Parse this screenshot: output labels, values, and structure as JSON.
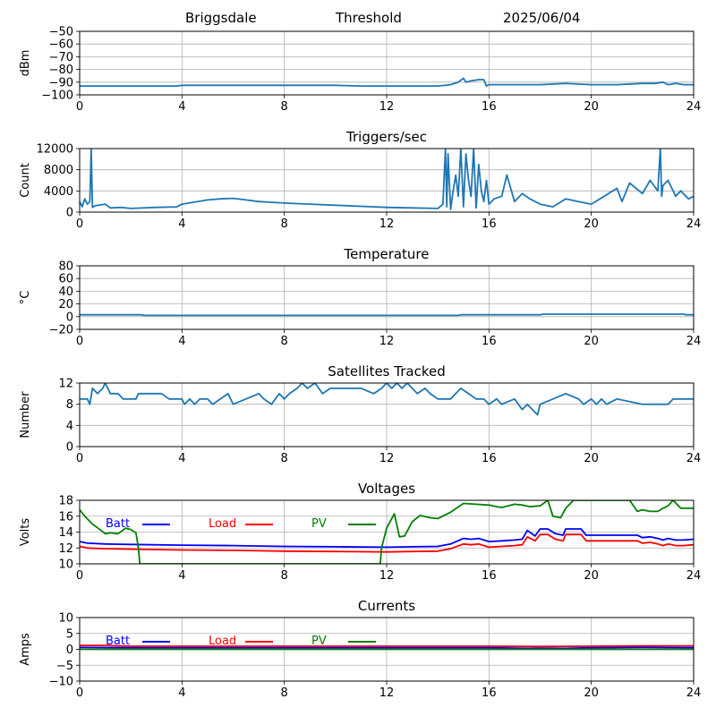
{
  "header": {
    "station": "Briggsdale",
    "mode": "Threshold",
    "date": "2025/06/04"
  },
  "colors": {
    "line": "#1f77b4",
    "grid": "#b0b0b0",
    "batt": "#0000ff",
    "load": "#ff0000",
    "pv": "#008000"
  },
  "x_ticks": [
    "0",
    "4",
    "8",
    "12",
    "16",
    "20",
    "24"
  ],
  "chart_data": [
    {
      "type": "line",
      "title": "",
      "ylabel": "dBm",
      "xlim": [
        0,
        24
      ],
      "ylim": [
        -100,
        -50
      ],
      "yticks": [
        -100,
        -90,
        -80,
        -70,
        -60,
        -50
      ],
      "ytick_labels": [
        "−100",
        "−90",
        "−80",
        "−70",
        "−60",
        "−50"
      ],
      "grid": true,
      "series": [
        {
          "x": [
            0,
            0.3,
            1,
            2,
            3,
            3.8,
            4,
            6,
            8,
            10,
            11,
            12,
            13,
            14,
            14.5,
            14.8,
            15,
            15.1,
            15.3,
            15.6,
            15.8,
            15.9,
            16,
            17,
            18,
            19,
            20,
            21,
            22,
            22.5,
            22.8,
            23,
            23.3,
            23.6,
            24
          ],
          "y": [
            -93,
            -93,
            -93,
            -93,
            -93,
            -93,
            -92.5,
            -92.5,
            -92.5,
            -92.5,
            -93,
            -93,
            -93,
            -93,
            -92,
            -90,
            -87,
            -90,
            -89,
            -88,
            -88,
            -93,
            -92,
            -92,
            -92,
            -91,
            -92,
            -92,
            -91,
            -91,
            -90,
            -92,
            -91,
            -92,
            -92
          ]
        }
      ]
    },
    {
      "type": "line",
      "title": "Triggers/sec",
      "ylabel": "Count",
      "xlim": [
        0,
        24
      ],
      "ylim": [
        0,
        12000
      ],
      "yticks": [
        0,
        4000,
        8000,
        12000
      ],
      "ytick_labels": [
        "0",
        "4000",
        "8000",
        "12000"
      ],
      "grid": true,
      "series": [
        {
          "x": [
            0,
            0.1,
            0.2,
            0.3,
            0.4,
            0.45,
            0.5,
            0.6,
            1,
            1.2,
            1.6,
            2,
            3,
            3.8,
            4,
            5,
            5.5,
            6,
            6.5,
            7,
            8,
            9,
            10,
            11,
            12,
            13,
            14,
            14.2,
            14.3,
            14.35,
            14.4,
            14.5,
            14.6,
            14.7,
            14.8,
            14.9,
            15,
            15.1,
            15.2,
            15.3,
            15.4,
            15.5,
            15.6,
            15.7,
            15.8,
            15.9,
            16,
            16.2,
            16.5,
            16.7,
            17,
            17.3,
            17.6,
            18,
            18.5,
            19,
            19.5,
            20,
            20.5,
            21,
            21.2,
            21.5,
            22,
            22.3,
            22.6,
            22.7,
            22.75,
            22.8,
            23,
            23.3,
            23.5,
            23.8,
            24
          ],
          "y": [
            2000,
            1000,
            2500,
            1500,
            2000,
            12000,
            900,
            1200,
            1500,
            800,
            900,
            700,
            900,
            1000,
            1500,
            2300,
            2500,
            2600,
            2300,
            2000,
            1700,
            1500,
            1300,
            1100,
            900,
            800,
            700,
            1500,
            12000,
            1000,
            11000,
            500,
            4000,
            7000,
            3000,
            12000,
            1000,
            11000,
            6000,
            3000,
            12000,
            800,
            9000,
            4000,
            2000,
            6000,
            1500,
            2500,
            3000,
            7000,
            2000,
            3500,
            2500,
            1500,
            1000,
            2500,
            2000,
            1500,
            3000,
            4500,
            2000,
            5500,
            3500,
            6000,
            4000,
            12000,
            3000,
            5000,
            6000,
            3000,
            4000,
            2500,
            3000
          ]
        }
      ]
    },
    {
      "type": "line",
      "title": "Temperature",
      "ylabel": "°C",
      "xlim": [
        0,
        24
      ],
      "ylim": [
        -20,
        80
      ],
      "yticks": [
        -20,
        0,
        20,
        40,
        60,
        80
      ],
      "ytick_labels": [
        "−20",
        "0",
        "20",
        "40",
        "60",
        "80"
      ],
      "grid": true,
      "series": [
        {
          "x": [
            0,
            2.4,
            2.5,
            14.8,
            14.9,
            18,
            18.1,
            23.6,
            23.7,
            24
          ],
          "y": [
            3,
            3,
            2,
            2,
            3,
            3,
            4,
            4,
            3,
            3
          ]
        }
      ]
    },
    {
      "type": "line",
      "title": "Satellites Tracked",
      "ylabel": "Number",
      "xlim": [
        0,
        24
      ],
      "ylim": [
        0,
        12
      ],
      "yticks": [
        0,
        4,
        8,
        12
      ],
      "ytick_labels": [
        "0",
        "4",
        "8",
        "12"
      ],
      "grid": true,
      "series": [
        {
          "x": [
            0,
            0.3,
            0.4,
            0.5,
            0.7,
            0.9,
            1,
            1.2,
            1.5,
            1.7,
            2.2,
            2.3,
            3.2,
            3.5,
            4,
            4.1,
            4.3,
            4.5,
            4.7,
            5,
            5.2,
            5.5,
            5.8,
            6,
            6.5,
            7,
            7.2,
            7.5,
            7.8,
            8,
            8.2,
            8.5,
            8.7,
            8.9,
            9.2,
            9.5,
            9.8,
            10,
            11,
            11.5,
            11.8,
            12,
            12.2,
            12.4,
            12.6,
            12.8,
            13,
            13.2,
            13.5,
            13.7,
            14,
            14.5,
            14.7,
            14.9,
            15.2,
            15.5,
            15.8,
            16,
            16.3,
            16.5,
            17,
            17.3,
            17.5,
            17.7,
            17.9,
            18,
            18.5,
            19,
            19.5,
            19.7,
            20,
            20.2,
            20.4,
            20.6,
            21,
            22,
            23,
            23.2,
            23.5,
            24
          ],
          "y": [
            9,
            9,
            8,
            11,
            10,
            11,
            12,
            10,
            10,
            9,
            9,
            10,
            10,
            9,
            9,
            8,
            9,
            8,
            9,
            9,
            8,
            9,
            10,
            8,
            9,
            10,
            9,
            8,
            10,
            9,
            10,
            11,
            12,
            11,
            12,
            10,
            11,
            11,
            11,
            10,
            11,
            12,
            11,
            12,
            11,
            12,
            11,
            10,
            11,
            10,
            9,
            9,
            10,
            11,
            10,
            9,
            9,
            8,
            9,
            8,
            9,
            7,
            8,
            7,
            6,
            8,
            9,
            10,
            9,
            8,
            9,
            8,
            9,
            8,
            9,
            8,
            8,
            9,
            9,
            9
          ]
        }
      ]
    },
    {
      "type": "line",
      "title": "Voltages",
      "ylabel": "Volts",
      "xlim": [
        0,
        24
      ],
      "ylim": [
        10,
        18
      ],
      "yticks": [
        10,
        12,
        14,
        16,
        18
      ],
      "ytick_labels": [
        "10",
        "12",
        "14",
        "16",
        "18"
      ],
      "grid": true,
      "legend_position": "upper-left",
      "series": [
        {
          "name": "Batt",
          "x": [
            0,
            0.3,
            1,
            2,
            4,
            6,
            8,
            10,
            12,
            13,
            14,
            14.5,
            15,
            15.3,
            15.6,
            16,
            16.5,
            17,
            17.3,
            17.5,
            17.8,
            18,
            18.3,
            18.6,
            18.9,
            19,
            19.6,
            19.8,
            20,
            21,
            21.8,
            22,
            22.3,
            22.6,
            22.8,
            23,
            23.3,
            23.6,
            24
          ],
          "y": [
            12.8,
            12.6,
            12.5,
            12.45,
            12.35,
            12.3,
            12.2,
            12.15,
            12.1,
            12.15,
            12.2,
            12.5,
            13.2,
            13.1,
            13.2,
            12.8,
            12.9,
            13,
            13.1,
            14.2,
            13.5,
            14.4,
            14.4,
            13.8,
            13.6,
            14.4,
            14.4,
            13.6,
            13.6,
            13.6,
            13.6,
            13.3,
            13.4,
            13.2,
            13,
            13.2,
            13,
            13,
            13.1
          ]
        },
        {
          "name": "Load",
          "x": [
            0,
            0.3,
            1,
            2,
            4,
            6,
            8,
            10,
            12,
            13,
            14,
            14.5,
            15,
            15.3,
            15.6,
            16,
            16.5,
            17,
            17.3,
            17.5,
            17.8,
            18,
            18.3,
            18.6,
            18.9,
            19,
            19.6,
            19.8,
            20,
            21,
            21.8,
            22,
            22.3,
            22.6,
            22.8,
            23,
            23.3,
            23.6,
            24
          ],
          "y": [
            12.2,
            12,
            11.9,
            11.85,
            11.75,
            11.7,
            11.6,
            11.55,
            11.5,
            11.55,
            11.6,
            11.9,
            12.5,
            12.4,
            12.5,
            12.1,
            12.2,
            12.3,
            12.4,
            13.4,
            12.9,
            13.7,
            13.7,
            13.1,
            12.9,
            13.7,
            13.7,
            12.9,
            12.9,
            12.9,
            12.9,
            12.6,
            12.7,
            12.5,
            12.3,
            12.5,
            12.3,
            12.3,
            12.4
          ]
        },
        {
          "name": "PV",
          "x": [
            0,
            0.2,
            0.5,
            0.8,
            1,
            1.2,
            1.5,
            1.8,
            2,
            2.2,
            2.3,
            2.35,
            11.75,
            11.8,
            12,
            12.3,
            12.5,
            12.7,
            13,
            13.3,
            13.7,
            14,
            14.5,
            15,
            15.5,
            16,
            16.3,
            16.5,
            17,
            17.3,
            17.6,
            18,
            18.3,
            18.5,
            18.8,
            19,
            19.3,
            21.5,
            21.8,
            22,
            22.3,
            22.6,
            22.8,
            23,
            23.2,
            23.5,
            24
          ],
          "y": [
            16.8,
            16,
            15,
            14.3,
            13.8,
            13.9,
            13.8,
            14.5,
            14.3,
            13.9,
            12,
            10,
            10,
            12,
            14.5,
            16.3,
            13.4,
            13.5,
            15.3,
            16.1,
            15.8,
            15.7,
            16.5,
            17.6,
            17.5,
            17.4,
            17.2,
            17.1,
            17.5,
            17.4,
            17.2,
            17.3,
            18,
            16,
            15.8,
            17,
            18,
            18,
            16.6,
            16.8,
            16.6,
            16.6,
            17,
            17.3,
            18,
            17,
            17
          ]
        }
      ]
    },
    {
      "type": "line",
      "title": "Currents",
      "ylabel": "Amps",
      "xlim": [
        0,
        24
      ],
      "ylim": [
        -10,
        10
      ],
      "yticks": [
        -10,
        -5,
        0,
        5,
        10
      ],
      "ytick_labels": [
        "−10",
        "−5",
        "0",
        "5",
        "10"
      ],
      "grid": true,
      "legend_position": "upper-left",
      "series": [
        {
          "name": "Batt",
          "x": [
            0,
            2,
            4,
            8,
            12,
            16,
            17.5,
            18,
            19,
            20,
            22,
            24
          ],
          "y": [
            0.6,
            0.5,
            0.5,
            0.5,
            0.5,
            0.5,
            0.3,
            0.4,
            0.3,
            0.5,
            0.6,
            0.5
          ]
        },
        {
          "name": "Load",
          "x": [
            0,
            1,
            2,
            4,
            8,
            12,
            16,
            18,
            20,
            22,
            24
          ],
          "y": [
            1.2,
            1.2,
            1.0,
            1.0,
            1.0,
            1.0,
            1.0,
            0.9,
            1.0,
            1.1,
            1.1
          ]
        },
        {
          "name": "PV",
          "x": [
            0,
            4,
            8,
            12,
            16,
            20,
            24
          ],
          "y": [
            0,
            0,
            0,
            0,
            0,
            0,
            0
          ]
        }
      ]
    }
  ]
}
